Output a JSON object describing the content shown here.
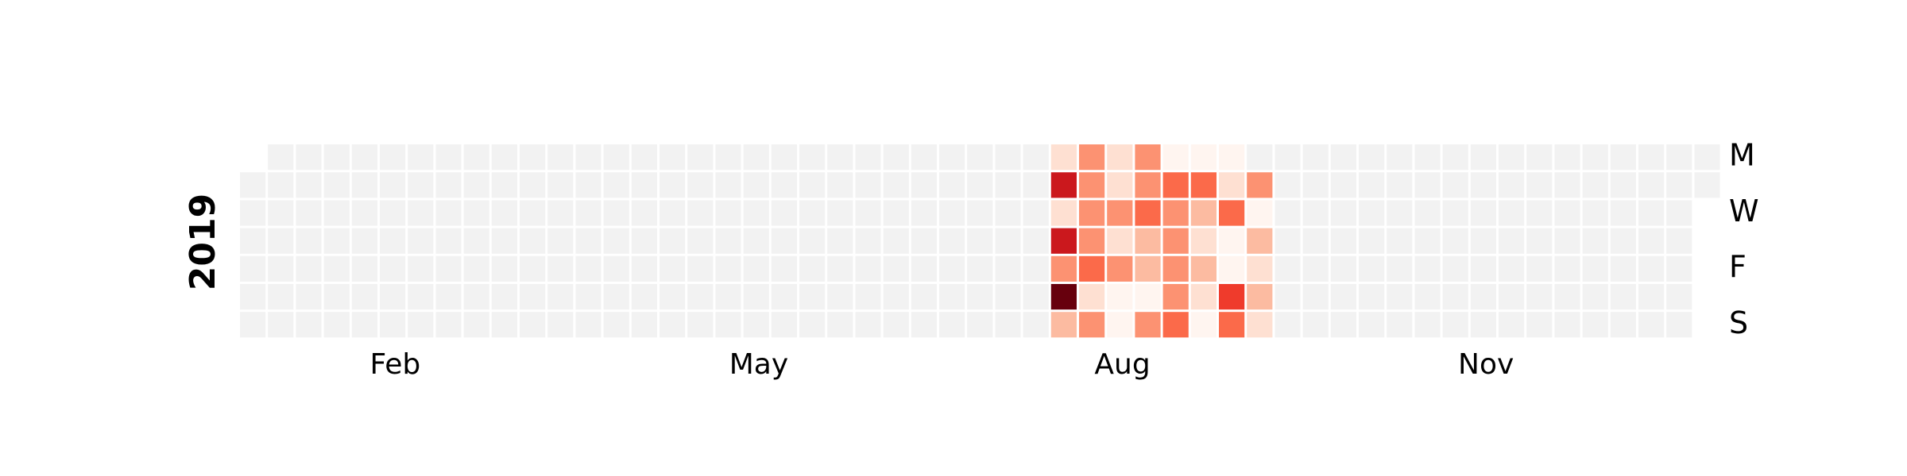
{
  "chart_data": {
    "type": "heatmap",
    "year": "2019",
    "month_labels": [
      "Feb",
      "May",
      "Aug",
      "Nov"
    ],
    "day_labels": [
      "M",
      "W",
      "F",
      "S"
    ],
    "background_color": "#ffffff",
    "empty_color": "#f2f2f2",
    "colormap": [
      "#fff5f0",
      "#fee0d2",
      "#fcbba1",
      "#fc9272",
      "#fb6a4a",
      "#ef3b2c",
      "#cb181d",
      "#a50f15",
      "#67000d"
    ],
    "vmin": 0,
    "vmax": 9,
    "start_week": 28,
    "weeks_with_data": 9,
    "week_values": [
      [
        null,
        null,
        null,
        null,
        null,
        null,
        null
      ],
      [
        1,
        7,
        1,
        7,
        3,
        9,
        2
      ],
      [
        3,
        3,
        3,
        3,
        4,
        1,
        3
      ],
      [
        1,
        1,
        3,
        1,
        3,
        0,
        0
      ],
      [
        3,
        3,
        4,
        2,
        2,
        0,
        3
      ],
      [
        0,
        4,
        3,
        3,
        3,
        3,
        4
      ],
      [
        0,
        4,
        2,
        1,
        2,
        1,
        0
      ],
      [
        0,
        1,
        4,
        0,
        0,
        6,
        4
      ],
      [
        null,
        3,
        0,
        2,
        1,
        2,
        1
      ]
    ]
  }
}
